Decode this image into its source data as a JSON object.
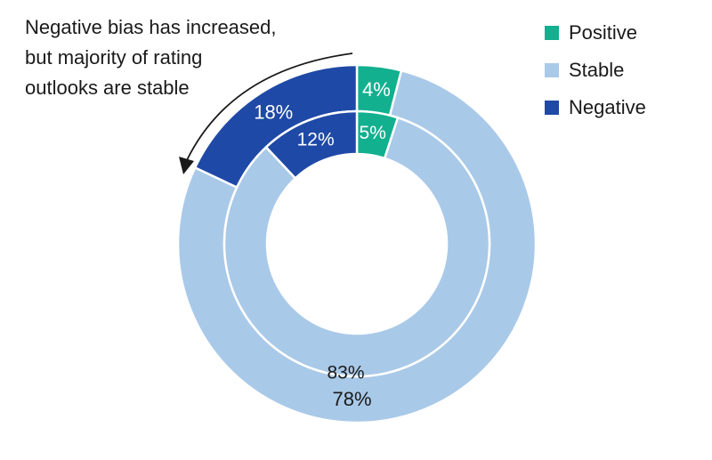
{
  "annotation": {
    "lines": [
      "Negative bias has increased,",
      "but majority of rating",
      "outlooks are stable"
    ]
  },
  "colors": {
    "Positive": "#12b08f",
    "Stable": "#a9c9e8",
    "Negative": "#1f49a6"
  },
  "legend": [
    "Positive",
    "Stable",
    "Negative"
  ],
  "chart_data": {
    "type": "pie",
    "variant": "nested-donut",
    "title": "",
    "categories": [
      "Positive",
      "Stable",
      "Negative"
    ],
    "series": [
      {
        "ring": "outer",
        "values": [
          4,
          78,
          18
        ],
        "labels": [
          "4%",
          "78%",
          "18%"
        ]
      },
      {
        "ring": "inner",
        "values": [
          5,
          83,
          12
        ],
        "labels": [
          "5%",
          "83%",
          "12%"
        ]
      }
    ],
    "start_angle": "12 o'clock",
    "direction": "clockwise",
    "legend_position": "top-right",
    "annotation": "Negative bias has increased, but majority of rating outlooks are stable"
  }
}
